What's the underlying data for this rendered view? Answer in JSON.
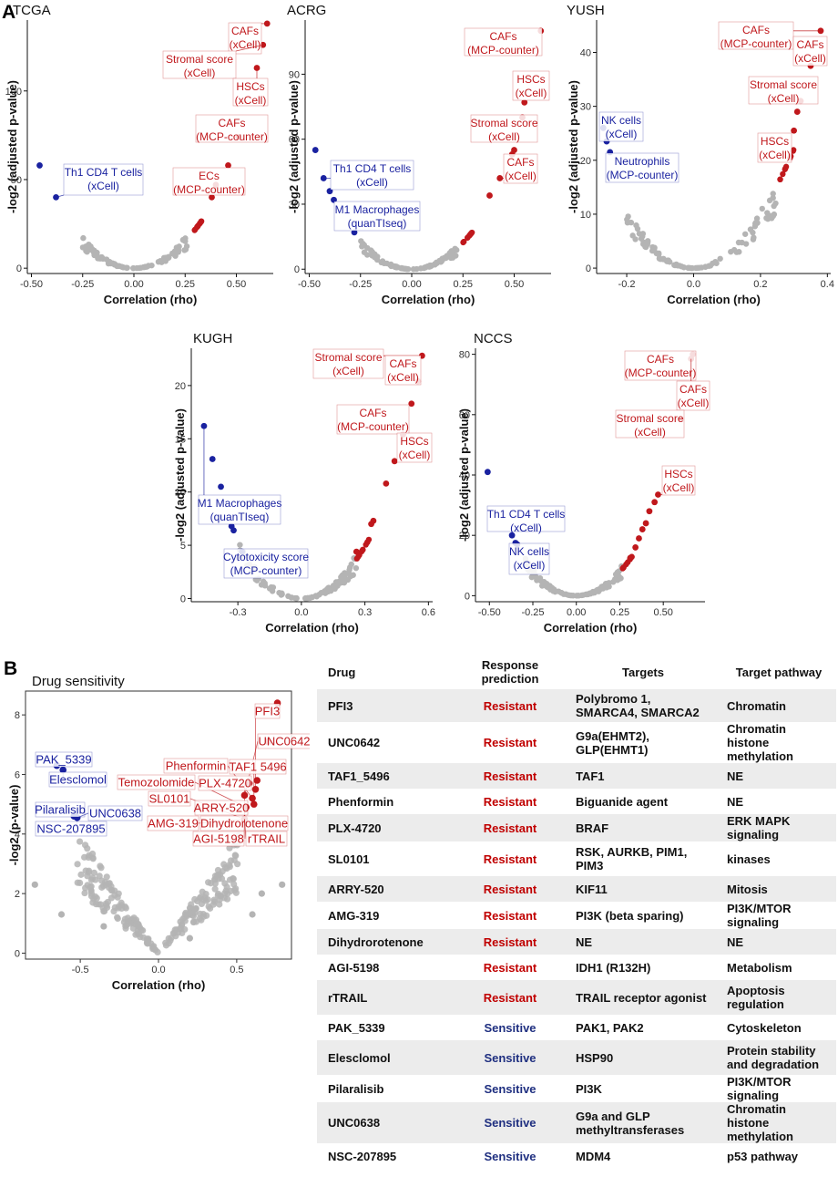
{
  "panel_labels": {
    "a": "A",
    "b": "B"
  },
  "chart_data": [
    {
      "type": "scatter",
      "title": "TCGA",
      "xlabel": "Correlation (rho)",
      "ylabel": "-log2 (adjusted p-value)",
      "xlim": [
        -0.52,
        0.68
      ],
      "ylim": [
        -3,
        140
      ],
      "xticks": [
        -0.5,
        -0.25,
        0.0,
        0.25,
        0.5
      ],
      "xticklabels": [
        "-0.50",
        "-0.25",
        "0.00",
        "0.25",
        "0.50"
      ],
      "yticks": [
        0,
        50,
        100
      ],
      "yticklabels": [
        "0",
        "50",
        "100"
      ],
      "neg_max": -0.25,
      "pos_min": 0.27,
      "highlighted": [
        {
          "x": -0.46,
          "y": 58,
          "color": "blue"
        },
        {
          "x": -0.38,
          "y": 40,
          "color": "blue"
        },
        {
          "x": 0.65,
          "y": 138,
          "color": "red"
        },
        {
          "x": 0.63,
          "y": 126,
          "color": "red"
        },
        {
          "x": 0.6,
          "y": 113,
          "color": "red"
        },
        {
          "x": 0.51,
          "y": 74,
          "color": "red"
        },
        {
          "x": 0.46,
          "y": 58,
          "color": "red"
        },
        {
          "x": 0.4,
          "y": 47,
          "color": "red"
        },
        {
          "x": 0.38,
          "y": 40,
          "color": "red"
        }
      ],
      "annotations": [
        {
          "lines": [
            "CAFs",
            "(xCell)"
          ],
          "color": "red"
        },
        {
          "lines": [
            "Stromal score",
            "(xCell)"
          ],
          "color": "red"
        },
        {
          "lines": [
            "HSCs",
            "(xCell)"
          ],
          "color": "red"
        },
        {
          "lines": [
            "CAFs",
            "(MCP-counter)"
          ],
          "color": "red"
        },
        {
          "lines": [
            "ECs",
            "(MCP-counter)"
          ],
          "color": "red"
        },
        {
          "lines": [
            "Th1 CD4 T cells",
            "(xCell)"
          ],
          "color": "blue"
        }
      ]
    },
    {
      "type": "scatter",
      "title": "ACRG",
      "xlabel": "Correlation (rho)",
      "ylabel": "-log2 (adjusted p-value)",
      "xlim": [
        -0.52,
        0.68
      ],
      "ylim": [
        -2,
        115
      ],
      "xticks": [
        -0.5,
        -0.25,
        0.0,
        0.25,
        0.5
      ],
      "xticklabels": [
        "-0.50",
        "-0.25",
        "0.00",
        "0.25",
        "0.50"
      ],
      "yticks": [
        0,
        30,
        60,
        90
      ],
      "yticklabels": [
        "0",
        "30",
        "60",
        "90"
      ],
      "neg_max": -0.26,
      "pos_min": 0.24,
      "highlighted": [
        {
          "x": -0.47,
          "y": 55,
          "color": "blue"
        },
        {
          "x": -0.43,
          "y": 42,
          "color": "blue"
        },
        {
          "x": -0.4,
          "y": 36,
          "color": "blue"
        },
        {
          "x": -0.38,
          "y": 32,
          "color": "blue"
        },
        {
          "x": -0.28,
          "y": 17,
          "color": "blue"
        },
        {
          "x": 0.63,
          "y": 110,
          "color": "red"
        },
        {
          "x": 0.55,
          "y": 77,
          "color": "red"
        },
        {
          "x": 0.54,
          "y": 70,
          "color": "red"
        },
        {
          "x": 0.5,
          "y": 55,
          "color": "red"
        },
        {
          "x": 0.49,
          "y": 53,
          "color": "red"
        },
        {
          "x": 0.43,
          "y": 42,
          "color": "red"
        },
        {
          "x": 0.38,
          "y": 34,
          "color": "red"
        }
      ],
      "annotations": [
        {
          "lines": [
            "CAFs",
            "(MCP-counter)"
          ],
          "color": "red"
        },
        {
          "lines": [
            "HSCs",
            "(xCell)"
          ],
          "color": "red"
        },
        {
          "lines": [
            "Stromal score",
            "(xCell)"
          ],
          "color": "red"
        },
        {
          "lines": [
            "CAFs",
            "(xCell)"
          ],
          "color": "red"
        },
        {
          "lines": [
            "Th1 CD4 T cells",
            "(xCell)"
          ],
          "color": "blue"
        },
        {
          "lines": [
            "M1 Macrophages",
            "(quanTIseq)"
          ],
          "color": "blue"
        }
      ]
    },
    {
      "type": "scatter",
      "title": "YUSH",
      "xlabel": "Correlation (rho)",
      "ylabel": "-log2 (adjusted p-value)",
      "xlim": [
        -0.29,
        0.41
      ],
      "ylim": [
        -1,
        46
      ],
      "xticks": [
        -0.2,
        0.0,
        0.2,
        0.4
      ],
      "xticklabels": [
        "-0.2",
        "0.0",
        "0.2",
        "0.4"
      ],
      "yticks": [
        0,
        10,
        20,
        30,
        40
      ],
      "yticklabels": [
        "0",
        "10",
        "20",
        "30",
        "40"
      ],
      "neg_max": -0.2,
      "pos_min": 0.25,
      "highlighted": [
        {
          "x": -0.27,
          "y": 26,
          "color": "blue"
        },
        {
          "x": -0.26,
          "y": 23.5,
          "color": "blue"
        },
        {
          "x": -0.25,
          "y": 21.5,
          "color": "blue"
        },
        {
          "x": 0.38,
          "y": 44,
          "color": "red"
        },
        {
          "x": 0.35,
          "y": 37.5,
          "color": "red"
        },
        {
          "x": 0.32,
          "y": 31,
          "color": "red"
        },
        {
          "x": 0.31,
          "y": 29,
          "color": "red"
        },
        {
          "x": 0.3,
          "y": 25.5,
          "color": "red"
        }
      ],
      "annotations": [
        {
          "lines": [
            "CAFs",
            "(MCP-counter)"
          ],
          "color": "red"
        },
        {
          "lines": [
            "CAFs",
            "(xCell)"
          ],
          "color": "red"
        },
        {
          "lines": [
            "Stromal score",
            "(xCell)"
          ],
          "color": "red"
        },
        {
          "lines": [
            "HSCs",
            "(xCell)"
          ],
          "color": "red"
        },
        {
          "lines": [
            "NK cells",
            "(xCell)"
          ],
          "color": "blue"
        },
        {
          "lines": [
            "Neutrophils",
            "(MCP-counter)"
          ],
          "color": "blue"
        }
      ]
    },
    {
      "type": "scatter",
      "title": "KUGH",
      "xlabel": "Correlation (rho)",
      "ylabel": "-log2 (adjusted p-value)",
      "xlim": [
        -0.52,
        0.62
      ],
      "ylim": [
        -0.3,
        23.5
      ],
      "xticks": [
        -0.3,
        0.0,
        0.3,
        0.6
      ],
      "xticklabels": [
        "-0.3",
        "0.0",
        "0.3",
        "0.6"
      ],
      "yticks": [
        0,
        5,
        10,
        15,
        20
      ],
      "yticklabels": [
        "0",
        "5",
        "10",
        "15",
        "20"
      ],
      "neg_max": -0.3,
      "pos_min": 0.26,
      "highlighted": [
        {
          "x": -0.46,
          "y": 16.2,
          "color": "blue"
        },
        {
          "x": -0.42,
          "y": 13.1,
          "color": "blue"
        },
        {
          "x": -0.38,
          "y": 10.5,
          "color": "blue"
        },
        {
          "x": -0.33,
          "y": 6.8,
          "color": "blue"
        },
        {
          "x": -0.32,
          "y": 6.4,
          "color": "blue"
        },
        {
          "x": -0.28,
          "y": 4.4,
          "color": "blue"
        },
        {
          "x": 0.57,
          "y": 22.8,
          "color": "red"
        },
        {
          "x": 0.55,
          "y": 20.4,
          "color": "red"
        },
        {
          "x": 0.52,
          "y": 18.3,
          "color": "red"
        },
        {
          "x": 0.48,
          "y": 15.4,
          "color": "red"
        },
        {
          "x": 0.44,
          "y": 12.9,
          "color": "red"
        },
        {
          "x": 0.4,
          "y": 10.8,
          "color": "red"
        },
        {
          "x": 0.34,
          "y": 7.3,
          "color": "red"
        },
        {
          "x": 0.33,
          "y": 7.0,
          "color": "red"
        },
        {
          "x": 0.26,
          "y": 4.4,
          "color": "red"
        }
      ],
      "annotations": [
        {
          "lines": [
            "Stromal score",
            "(xCell)"
          ],
          "color": "red"
        },
        {
          "lines": [
            "CAFs",
            "(xCell)"
          ],
          "color": "red"
        },
        {
          "lines": [
            "CAFs",
            "(MCP-counter)"
          ],
          "color": "red"
        },
        {
          "lines": [
            "HSCs",
            "(xCell)"
          ],
          "color": "red"
        },
        {
          "lines": [
            "M1 Macrophages",
            "(quanTIseq)"
          ],
          "color": "blue"
        },
        {
          "lines": [
            "Cytotoxicity score",
            "(MCP-counter)"
          ],
          "color": "blue"
        }
      ]
    },
    {
      "type": "scatter",
      "title": "NCCS",
      "xlabel": "Correlation (rho)",
      "ylabel": "-log2 (adjusted p-value)",
      "xlim": [
        -0.58,
        0.74
      ],
      "ylim": [
        -2,
        82
      ],
      "xticks": [
        -0.5,
        -0.25,
        0.0,
        0.25,
        0.5
      ],
      "xticklabels": [
        "-0.50",
        "-0.25",
        "0.00",
        "0.25",
        "0.50"
      ],
      "yticks": [
        0,
        20,
        40,
        60,
        80
      ],
      "yticklabels": [
        "0",
        "20",
        "40",
        "60",
        "80"
      ],
      "neg_max": -0.3,
      "pos_min": 0.26,
      "highlighted": [
        {
          "x": -0.51,
          "y": 41,
          "color": "blue"
        },
        {
          "x": -0.37,
          "y": 20,
          "color": "blue"
        },
        {
          "x": -0.35,
          "y": 17.5,
          "color": "blue"
        },
        {
          "x": -0.34,
          "y": 17,
          "color": "blue"
        },
        {
          "x": 0.67,
          "y": 80,
          "color": "red"
        },
        {
          "x": 0.66,
          "y": 78.5,
          "color": "red"
        },
        {
          "x": 0.6,
          "y": 58.5,
          "color": "red"
        },
        {
          "x": 0.47,
          "y": 33.5,
          "color": "red"
        },
        {
          "x": 0.45,
          "y": 31,
          "color": "red"
        },
        {
          "x": 0.42,
          "y": 28,
          "color": "red"
        },
        {
          "x": 0.4,
          "y": 24,
          "color": "red"
        },
        {
          "x": 0.38,
          "y": 22,
          "color": "red"
        },
        {
          "x": 0.36,
          "y": 19,
          "color": "red"
        },
        {
          "x": 0.34,
          "y": 16,
          "color": "red"
        },
        {
          "x": 0.31,
          "y": 12.5,
          "color": "red"
        }
      ],
      "annotations": [
        {
          "lines": [
            "CAFs",
            "(MCP-counter)"
          ],
          "color": "red"
        },
        {
          "lines": [
            "CAFs",
            "(xCell)"
          ],
          "color": "red"
        },
        {
          "lines": [
            "Stromal score",
            "(xCell)"
          ],
          "color": "red"
        },
        {
          "lines": [
            "HSCs",
            "(xCell)"
          ],
          "color": "red"
        },
        {
          "lines": [
            "Th1 CD4 T cells",
            "(xCell)"
          ],
          "color": "blue"
        },
        {
          "lines": [
            "NK cells",
            "(xCell)"
          ],
          "color": "blue"
        }
      ]
    },
    {
      "type": "scatter",
      "title": "Drug sensitivity",
      "xlabel": "Correlation (rho)",
      "ylabel": "-log2 (p-value)",
      "xlim": [
        -0.85,
        0.85
      ],
      "ylim": [
        -0.2,
        8.8
      ],
      "xticks": [
        -0.5,
        0.0,
        0.5
      ],
      "xticklabels": [
        "-0.5",
        "0.0",
        "0.5"
      ],
      "yticks": [
        0,
        2,
        4,
        6,
        8
      ],
      "yticklabels": [
        "0",
        "2",
        "4",
        "6",
        "8"
      ],
      "neg_max": -0.52,
      "pos_min": 0.52,
      "background_extra": [
        {
          "x": -0.79,
          "y": 2.3
        },
        {
          "x": -0.43,
          "y": 2.1
        },
        {
          "x": -0.62,
          "y": 1.3
        },
        {
          "x": 0.79,
          "y": 2.3
        },
        {
          "x": 0.6,
          "y": 1.3
        },
        {
          "x": 0.24,
          "y": 1.5
        },
        {
          "x": 0.2,
          "y": 0.5
        },
        {
          "x": -0.35,
          "y": 0.9
        },
        {
          "x": 0.66,
          "y": 2.0
        }
      ],
      "highlighted": [
        {
          "x": -0.65,
          "y": 6.3,
          "color": "blue"
        },
        {
          "x": -0.61,
          "y": 6.15,
          "color": "blue"
        },
        {
          "x": -0.54,
          "y": 4.6,
          "color": "blue"
        },
        {
          "x": -0.52,
          "y": 4.55,
          "color": "blue"
        },
        {
          "x": 0.76,
          "y": 8.4,
          "color": "red"
        },
        {
          "x": 0.7,
          "y": 7.1,
          "color": "red"
        },
        {
          "x": 0.63,
          "y": 5.8,
          "color": "red"
        },
        {
          "x": 0.58,
          "y": 5.7,
          "color": "red"
        },
        {
          "x": 0.62,
          "y": 5.5,
          "color": "red"
        },
        {
          "x": 0.55,
          "y": 5.3,
          "color": "red"
        },
        {
          "x": 0.6,
          "y": 5.2,
          "color": "red"
        },
        {
          "x": 0.61,
          "y": 5.0,
          "color": "red"
        },
        {
          "x": 0.56,
          "y": 4.9,
          "color": "red"
        },
        {
          "x": 0.55,
          "y": 4.5,
          "color": "red"
        }
      ],
      "annotations": [
        {
          "lines": [
            "PFI3"
          ],
          "color": "red"
        },
        {
          "lines": [
            "UNC0642"
          ],
          "color": "red"
        },
        {
          "lines": [
            "Phenformin"
          ],
          "color": "red"
        },
        {
          "lines": [
            "TAF1 5496"
          ],
          "color": "red"
        },
        {
          "lines": [
            "Temozolomide"
          ],
          "color": "red"
        },
        {
          "lines": [
            "PLX-4720"
          ],
          "color": "red"
        },
        {
          "lines": [
            "SL0101"
          ],
          "color": "red"
        },
        {
          "lines": [
            "ARRY-520"
          ],
          "color": "red"
        },
        {
          "lines": [
            "AMG-319"
          ],
          "color": "red"
        },
        {
          "lines": [
            "Dihydrorotenone"
          ],
          "color": "red"
        },
        {
          "lines": [
            "AGI-5198"
          ],
          "color": "red"
        },
        {
          "lines": [
            "rTRAIL"
          ],
          "color": "red"
        },
        {
          "lines": [
            "PAK_5339"
          ],
          "color": "blue"
        },
        {
          "lines": [
            "Elesclomol"
          ],
          "color": "blue"
        },
        {
          "lines": [
            "Pilaralisib"
          ],
          "color": "blue"
        },
        {
          "lines": [
            "UNC0638"
          ],
          "color": "blue"
        },
        {
          "lines": [
            "NSC-207895"
          ],
          "color": "blue"
        }
      ]
    }
  ],
  "colors": {
    "red": "#c0181c",
    "blue": "#1a22a0",
    "grey": "#b4b4b4",
    "resistant": "#c00000",
    "sensitive": "#1f2f80",
    "row_shade": "#ececec"
  },
  "table": {
    "headers": [
      "Drug",
      "Response prediction",
      "Targets",
      "Target pathway"
    ],
    "rows": [
      {
        "drug": "PFI3",
        "response": "Resistant",
        "targets": "Polybromo 1, SMARCA4, SMARCA2",
        "pathway": "Chromatin"
      },
      {
        "drug": "UNC0642",
        "response": "Resistant",
        "targets": "G9a(EHMT2), GLP(EHMT1)",
        "pathway": "Chromatin histone methylation"
      },
      {
        "drug": "TAF1_5496",
        "response": "Resistant",
        "targets": "TAF1",
        "pathway": "NE"
      },
      {
        "drug": "Phenformin",
        "response": "Resistant",
        "targets": "Biguanide agent",
        "pathway": "NE"
      },
      {
        "drug": "PLX-4720",
        "response": "Resistant",
        "targets": "BRAF",
        "pathway": "ERK MAPK signaling"
      },
      {
        "drug": "SL0101",
        "response": "Resistant",
        "targets": "RSK, AURKB, PIM1, PIM3",
        "pathway": "kinases"
      },
      {
        "drug": "ARRY-520",
        "response": "Resistant",
        "targets": "KIF11",
        "pathway": "Mitosis"
      },
      {
        "drug": "AMG-319",
        "response": "Resistant",
        "targets": "PI3K (beta sparing)",
        "pathway": "PI3K/MTOR signaling"
      },
      {
        "drug": "Dihydrorotenone",
        "response": "Resistant",
        "targets": "NE",
        "pathway": "NE"
      },
      {
        "drug": "AGI-5198",
        "response": "Resistant",
        "targets": "IDH1 (R132H)",
        "pathway": "Metabolism"
      },
      {
        "drug": "rTRAIL",
        "response": "Resistant",
        "targets": "TRAIL receptor agonist",
        "pathway": "Apoptosis regulation"
      },
      {
        "drug": "PAK_5339",
        "response": "Sensitive",
        "targets": "PAK1, PAK2",
        "pathway": "Cytoskeleton"
      },
      {
        "drug": "Elesclomol",
        "response": "Sensitive",
        "targets": "HSP90",
        "pathway": "Protein stability and degradation"
      },
      {
        "drug": "Pilaralisib",
        "response": "Sensitive",
        "targets": "PI3K",
        "pathway": "PI3K/MTOR signaling"
      },
      {
        "drug": "UNC0638",
        "response": "Sensitive",
        "targets": "G9a and GLP methyltransferases",
        "pathway": "Chromatin histone methylation"
      },
      {
        "drug": "NSC-207895",
        "response": "Sensitive",
        "targets": "MDM4",
        "pathway": "p53 pathway"
      }
    ]
  }
}
